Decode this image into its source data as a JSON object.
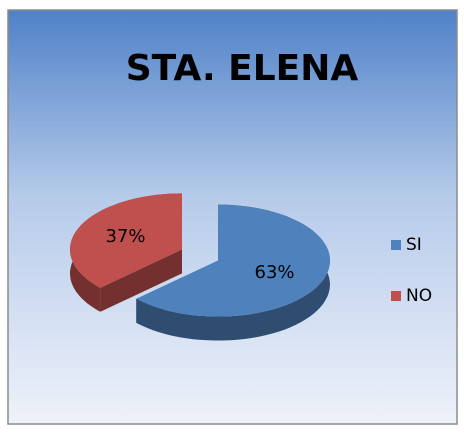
{
  "chart_data": {
    "type": "pie3d",
    "title": "STA. ELENA",
    "categories": [
      "SI",
      "NO"
    ],
    "values": [
      63,
      37
    ],
    "value_labels": [
      "63%",
      "37%"
    ],
    "colors": [
      "#4f81bd",
      "#c0504d"
    ],
    "legend": "right"
  }
}
